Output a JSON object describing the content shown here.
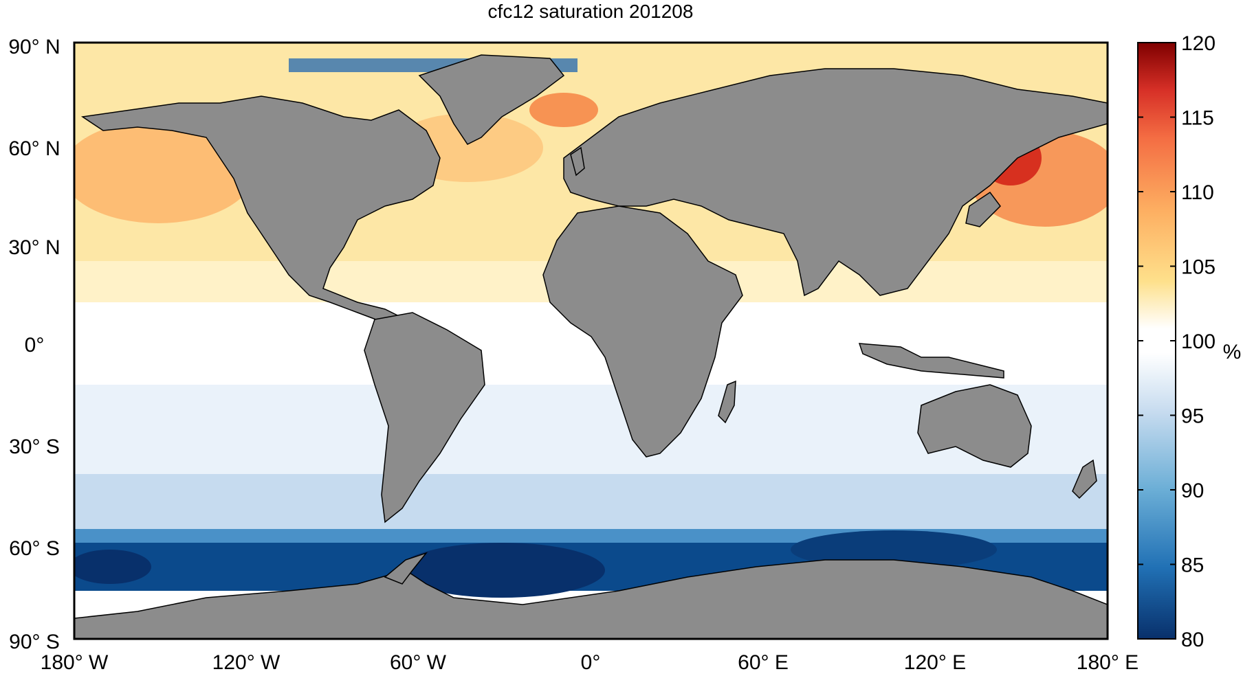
{
  "title": "cfc12 saturation 201208",
  "projection": "equirectangular",
  "extent": {
    "lon": [
      -180,
      180
    ],
    "lat": [
      -90,
      90
    ]
  },
  "lat_ticks": [
    {
      "value": 90,
      "label": "90° N"
    },
    {
      "value": 60,
      "label": "60° N"
    },
    {
      "value": 30,
      "label": "30° N"
    },
    {
      "value": 0,
      "label": "0°"
    },
    {
      "value": -30,
      "label": "30° S"
    },
    {
      "value": -60,
      "label": "60° S"
    },
    {
      "value": -90,
      "label": "90° S"
    }
  ],
  "lon_ticks": [
    {
      "value": -180,
      "label": "180° W"
    },
    {
      "value": -120,
      "label": "120° W"
    },
    {
      "value": -60,
      "label": "60° W"
    },
    {
      "value": 0,
      "label": "0°"
    },
    {
      "value": 60,
      "label": "60° E"
    },
    {
      "value": 120,
      "label": "120° E"
    },
    {
      "value": 180,
      "label": "180° E"
    }
  ],
  "colorbar": {
    "min": 80,
    "max": 120,
    "unit": "%",
    "tick_values": [
      80,
      85,
      90,
      95,
      100,
      105,
      110,
      115,
      120
    ],
    "tick_labels": [
      "80",
      "85",
      "90",
      "95",
      "100",
      "105",
      "110",
      "115",
      "120"
    ],
    "colors_low_to_high": [
      "#08306b",
      "#2171b5",
      "#6baed6",
      "#c6dbef",
      "#ffffff",
      "#fee08b",
      "#fdae61",
      "#f46d43",
      "#d73027",
      "#7f0000"
    ]
  },
  "land_color": "#8c8c8c",
  "no_data_color": "#ffffff"
}
